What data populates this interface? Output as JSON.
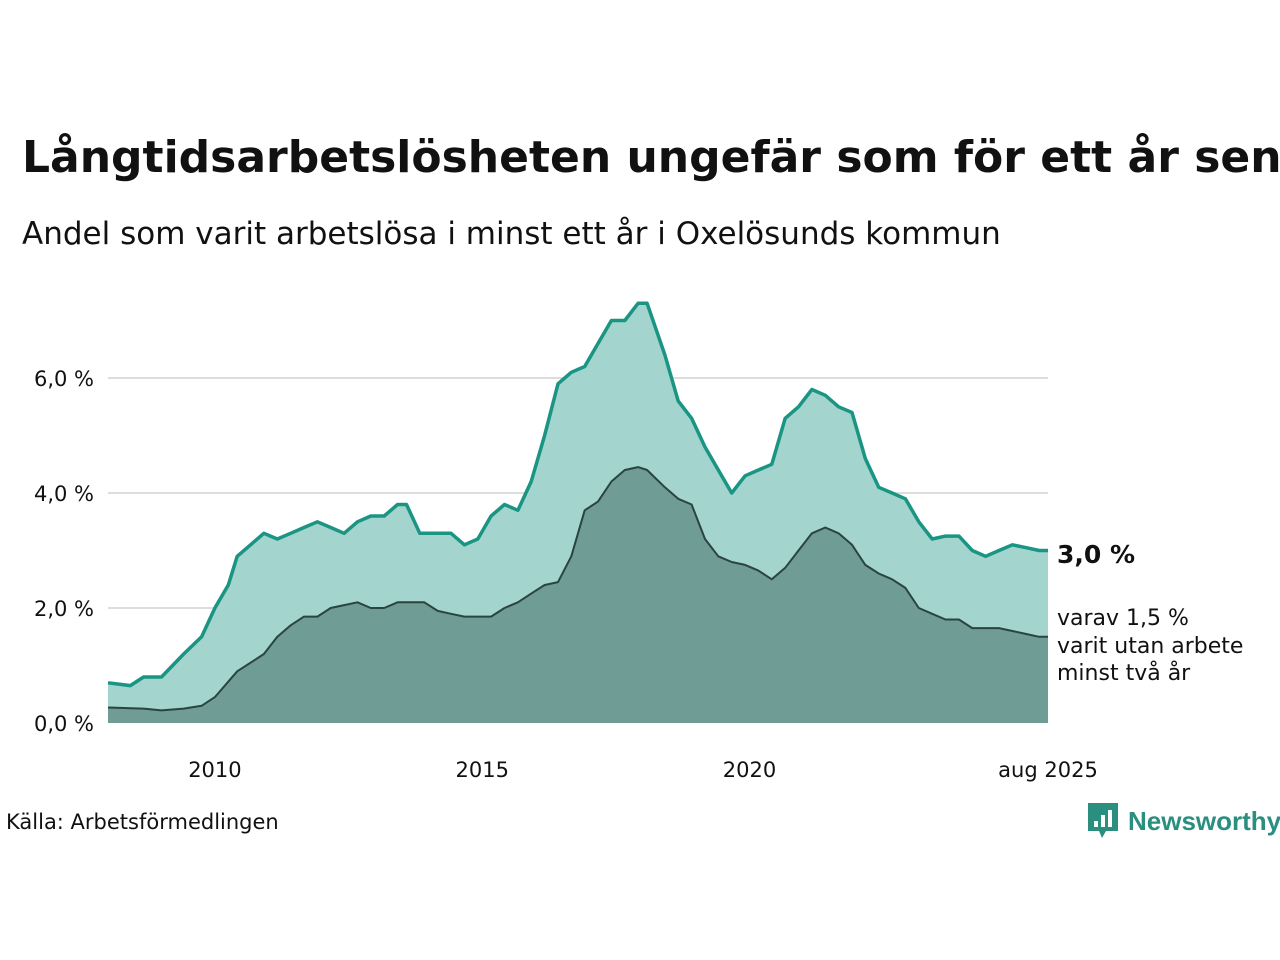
{
  "header": {
    "title": "Långtidsarbetslösheten ungefär som för ett år sen",
    "subtitle": "Andel som varit arbetslösa i minst ett år i Oxelösunds kommun"
  },
  "footer": {
    "source": "Källa: Arbetsförmedlingen",
    "brand": "Newsworthy"
  },
  "colors": {
    "series1_line": "#1a9583",
    "series1_fill": "#a3d4cd",
    "series2_line": "#2a4441",
    "series2_fill": "#6f9c95",
    "grid": "#dddddd",
    "brand": "#2b8f80"
  },
  "chart_data": {
    "type": "area",
    "title": "Långtidsarbetslösheten ungefär som för ett år sen",
    "subtitle": "Andel som varit arbetslösa i minst ett år i Oxelösunds kommun",
    "x_range": [
      "2008-01",
      "2025-08"
    ],
    "ylim": [
      0,
      7.5
    ],
    "y_ticks": [
      0,
      2,
      4,
      6
    ],
    "y_tick_labels": [
      "0,0 %",
      "2,0 %",
      "4,0 %",
      "6,0 %"
    ],
    "x_ticks": [
      "2010-01",
      "2015-01",
      "2020-01",
      "2025-08"
    ],
    "x_tick_labels": [
      "2010",
      "2015",
      "2020",
      "aug 2025"
    ],
    "grid": true,
    "annotations": {
      "main_value": "3,0 %",
      "sub_lines": [
        "varav 1,5 %",
        "varit utan arbete",
        "minst två år"
      ]
    },
    "series": [
      {
        "points": [
          [
            "2008-01",
            0.7
          ],
          [
            "2008-06",
            0.65
          ],
          [
            "2008-09",
            0.8
          ],
          [
            "2009-01",
            0.8
          ],
          [
            "2009-06",
            1.2
          ],
          [
            "2009-10",
            1.5
          ],
          [
            "2010-01",
            2.0
          ],
          [
            "2010-04",
            2.4
          ],
          [
            "2010-06",
            2.9
          ],
          [
            "2010-09",
            3.1
          ],
          [
            "2010-12",
            3.3
          ],
          [
            "2011-03",
            3.2
          ],
          [
            "2011-06",
            3.3
          ],
          [
            "2011-09",
            3.4
          ],
          [
            "2011-12",
            3.5
          ],
          [
            "2012-03",
            3.4
          ],
          [
            "2012-06",
            3.3
          ],
          [
            "2012-09",
            3.5
          ],
          [
            "2012-12",
            3.6
          ],
          [
            "2013-03",
            3.6
          ],
          [
            "2013-06",
            3.8
          ],
          [
            "2013-08",
            3.8
          ],
          [
            "2013-11",
            3.3
          ],
          [
            "2014-03",
            3.3
          ],
          [
            "2014-06",
            3.3
          ],
          [
            "2014-09",
            3.1
          ],
          [
            "2014-12",
            3.2
          ],
          [
            "2015-03",
            3.6
          ],
          [
            "2015-06",
            3.8
          ],
          [
            "2015-09",
            3.7
          ],
          [
            "2015-12",
            4.2
          ],
          [
            "2016-03",
            5.0
          ],
          [
            "2016-06",
            5.9
          ],
          [
            "2016-09",
            6.1
          ],
          [
            "2016-12",
            6.2
          ],
          [
            "2017-03",
            6.6
          ],
          [
            "2017-06",
            7.0
          ],
          [
            "2017-09",
            7.0
          ],
          [
            "2017-12",
            7.3
          ],
          [
            "2018-02",
            7.3
          ],
          [
            "2018-06",
            6.4
          ],
          [
            "2018-09",
            5.6
          ],
          [
            "2018-12",
            5.3
          ],
          [
            "2019-03",
            4.8
          ],
          [
            "2019-06",
            4.4
          ],
          [
            "2019-09",
            4.0
          ],
          [
            "2019-12",
            4.3
          ],
          [
            "2020-03",
            4.4
          ],
          [
            "2020-06",
            4.5
          ],
          [
            "2020-09",
            5.3
          ],
          [
            "2020-12",
            5.5
          ],
          [
            "2021-03",
            5.8
          ],
          [
            "2021-06",
            5.7
          ],
          [
            "2021-09",
            5.5
          ],
          [
            "2021-12",
            5.4
          ],
          [
            "2022-03",
            4.6
          ],
          [
            "2022-06",
            4.1
          ],
          [
            "2022-09",
            4.0
          ],
          [
            "2022-12",
            3.9
          ],
          [
            "2023-03",
            3.5
          ],
          [
            "2023-06",
            3.2
          ],
          [
            "2023-09",
            3.25
          ],
          [
            "2023-12",
            3.25
          ],
          [
            "2024-03",
            3.0
          ],
          [
            "2024-06",
            2.9
          ],
          [
            "2024-09",
            3.0
          ],
          [
            "2024-12",
            3.1
          ],
          [
            "2025-03",
            3.05
          ],
          [
            "2025-06",
            3.0
          ],
          [
            "2025-08",
            3.0
          ]
        ]
      },
      {
        "points": [
          [
            "2008-01",
            0.27
          ],
          [
            "2008-09",
            0.25
          ],
          [
            "2009-01",
            0.22
          ],
          [
            "2009-06",
            0.25
          ],
          [
            "2009-10",
            0.3
          ],
          [
            "2010-01",
            0.45
          ],
          [
            "2010-06",
            0.9
          ],
          [
            "2010-12",
            1.2
          ],
          [
            "2011-03",
            1.5
          ],
          [
            "2011-06",
            1.7
          ],
          [
            "2011-09",
            1.85
          ],
          [
            "2011-12",
            1.85
          ],
          [
            "2012-03",
            2.0
          ],
          [
            "2012-06",
            2.05
          ],
          [
            "2012-09",
            2.1
          ],
          [
            "2012-12",
            2.0
          ],
          [
            "2013-03",
            2.0
          ],
          [
            "2013-06",
            2.1
          ],
          [
            "2013-09",
            2.1
          ],
          [
            "2013-12",
            2.1
          ],
          [
            "2014-03",
            1.95
          ],
          [
            "2014-06",
            1.9
          ],
          [
            "2014-09",
            1.85
          ],
          [
            "2014-12",
            1.85
          ],
          [
            "2015-03",
            1.85
          ],
          [
            "2015-06",
            2.0
          ],
          [
            "2015-09",
            2.1
          ],
          [
            "2015-12",
            2.25
          ],
          [
            "2016-03",
            2.4
          ],
          [
            "2016-06",
            2.45
          ],
          [
            "2016-09",
            2.9
          ],
          [
            "2016-12",
            3.7
          ],
          [
            "2017-03",
            3.85
          ],
          [
            "2017-06",
            4.2
          ],
          [
            "2017-09",
            4.4
          ],
          [
            "2017-12",
            4.45
          ],
          [
            "2018-02",
            4.4
          ],
          [
            "2018-06",
            4.1
          ],
          [
            "2018-09",
            3.9
          ],
          [
            "2018-12",
            3.8
          ],
          [
            "2019-03",
            3.2
          ],
          [
            "2019-06",
            2.9
          ],
          [
            "2019-09",
            2.8
          ],
          [
            "2019-12",
            2.75
          ],
          [
            "2020-03",
            2.65
          ],
          [
            "2020-06",
            2.5
          ],
          [
            "2020-09",
            2.7
          ],
          [
            "2020-12",
            3.0
          ],
          [
            "2021-03",
            3.3
          ],
          [
            "2021-06",
            3.4
          ],
          [
            "2021-09",
            3.3
          ],
          [
            "2021-12",
            3.1
          ],
          [
            "2022-03",
            2.75
          ],
          [
            "2022-06",
            2.6
          ],
          [
            "2022-09",
            2.5
          ],
          [
            "2022-12",
            2.35
          ],
          [
            "2023-03",
            2.0
          ],
          [
            "2023-06",
            1.9
          ],
          [
            "2023-09",
            1.8
          ],
          [
            "2023-12",
            1.8
          ],
          [
            "2024-03",
            1.65
          ],
          [
            "2024-06",
            1.65
          ],
          [
            "2024-09",
            1.65
          ],
          [
            "2024-12",
            1.6
          ],
          [
            "2025-03",
            1.55
          ],
          [
            "2025-06",
            1.5
          ],
          [
            "2025-08",
            1.5
          ]
        ]
      }
    ]
  }
}
